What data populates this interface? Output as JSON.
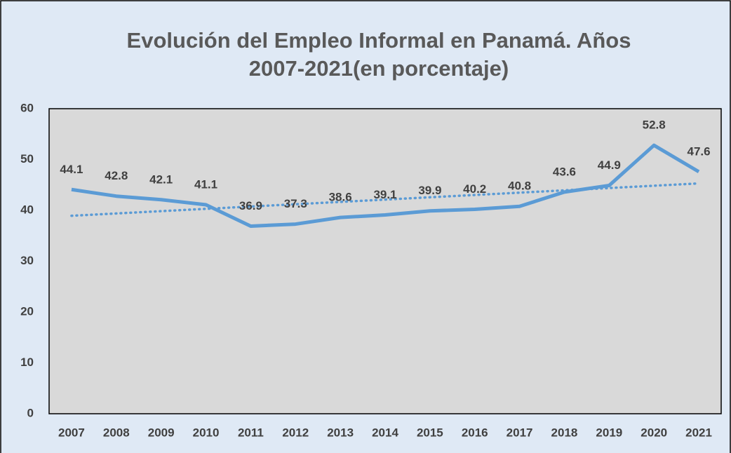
{
  "chart_data": {
    "type": "line",
    "title": "Evolución del Empleo Informal en Panamá. Años 2007-2021(en porcentaje)",
    "categories": [
      "2007",
      "2008",
      "2009",
      "2010",
      "2011",
      "2012",
      "2013",
      "2014",
      "2015",
      "2016",
      "2017",
      "2018",
      "2019",
      "2020",
      "2021"
    ],
    "values": [
      44.1,
      42.8,
      42.1,
      41.1,
      36.9,
      37.3,
      38.6,
      39.1,
      39.9,
      40.2,
      40.8,
      43.6,
      44.9,
      52.8,
      47.6
    ],
    "color": "#5b9bd5",
    "trendline": "linear",
    "ylim": [
      0,
      60
    ],
    "yticks": [
      0,
      10,
      20,
      30,
      40,
      50,
      60
    ],
    "grid": false
  }
}
